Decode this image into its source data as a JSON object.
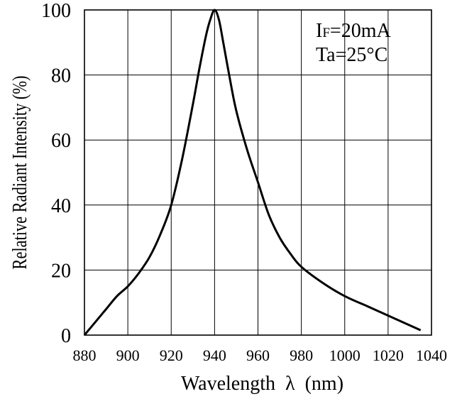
{
  "chart_data": {
    "type": "line",
    "xlabel": "Wavelength  λ  (nm)",
    "ylabel": "Relative Radiant Intensity (%)",
    "xlim": [
      880,
      1040
    ],
    "ylim": [
      0,
      100
    ],
    "xticks": [
      880,
      900,
      920,
      940,
      960,
      980,
      1000,
      1020,
      1040
    ],
    "yticks": [
      0,
      20,
      40,
      60,
      80,
      100
    ],
    "grid": true,
    "annotation": {
      "line1_main": "I",
      "line1_sub": "F",
      "line1_rest": "=20mA",
      "line2": "Ta=25°C",
      "position": "top-right"
    },
    "series": [
      {
        "x": [
          880,
          885,
          890,
          895,
          900,
          905,
          910,
          915,
          920,
          925,
          930,
          933,
          936,
          938,
          940,
          942,
          944,
          947,
          950,
          955,
          960,
          965,
          970,
          975,
          980,
          990,
          1000,
          1010,
          1020,
          1030,
          1035
        ],
        "y": [
          0,
          4,
          8,
          12,
          15,
          19,
          24,
          31,
          40,
          54,
          71,
          82,
          92,
          97,
          100,
          97,
          90,
          79,
          69,
          57,
          47,
          37,
          30,
          25,
          21,
          16,
          12,
          9,
          6,
          3,
          1.5
        ]
      }
    ]
  }
}
